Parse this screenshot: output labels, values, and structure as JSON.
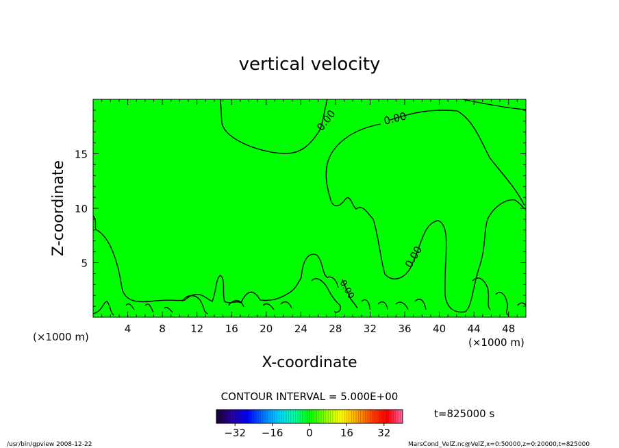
{
  "chart_data": {
    "type": "contour",
    "title": "vertical velocity",
    "xlabel": "X-coordinate",
    "ylabel": "Z-coordinate",
    "x_unit": "(×1000 m)",
    "y_unit": "(×1000 m)",
    "x_ticks": [
      4,
      8,
      12,
      16,
      20,
      24,
      28,
      32,
      36,
      40,
      44,
      48
    ],
    "y_ticks": [
      5,
      10,
      15
    ],
    "xlim": [
      0,
      50
    ],
    "ylim": [
      0,
      20
    ],
    "fill_color": "#00ff00",
    "contour_levels_labeled": [
      "0.00",
      "0.00",
      "0.00",
      "0.00"
    ],
    "contour_interval_text": "CONTOUR INTERVAL = 5.000E+00",
    "colorbar": {
      "range": [
        -40,
        40
      ],
      "ticks": [
        -32,
        -16,
        0,
        16,
        32
      ],
      "tick_labels": [
        "−32",
        "−16",
        "0",
        "16",
        "32"
      ],
      "colormap": [
        "#1a0033",
        "#2a00a0",
        "#0000ff",
        "#0077ff",
        "#00d0ff",
        "#00ffaa",
        "#00ff00",
        "#88ff00",
        "#ffff00",
        "#ffaa00",
        "#ff4400",
        "#ff0000",
        "#ff66aa"
      ]
    },
    "time_text": "t=825000 s",
    "grid": false
  },
  "footer": {
    "left": "/usr/bin/gpview  2008-12-22",
    "right": "MarsCond_VelZ.nc@VelZ,x=0:50000,z=0:20000,t=825000"
  }
}
